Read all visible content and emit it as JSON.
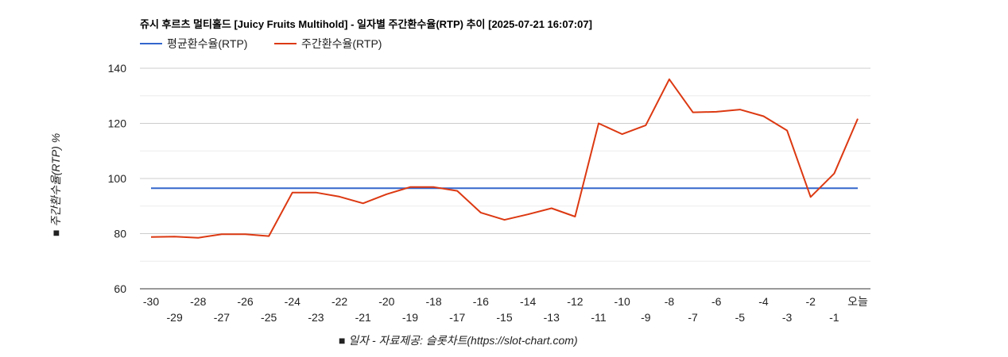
{
  "chart_data": {
    "type": "line",
    "title": "쥬시 후르츠 멀티홀드 [Juicy Fruits Multihold] - 일자별 주간환수율(RTP) 추이 [2025-07-21 16:07:07]",
    "xlabel": "■ 일자 - 자료제공: 슬롯차트(https://slot-chart.com)",
    "ylabel": "■ 주간환수율(RTP) %",
    "categories": [
      "-30",
      "-29",
      "-28",
      "-27",
      "-26",
      "-25",
      "-24",
      "-23",
      "-22",
      "-21",
      "-20",
      "-19",
      "-18",
      "-17",
      "-16",
      "-15",
      "-14",
      "-13",
      "-12",
      "-11",
      "-10",
      "-9",
      "-8",
      "-7",
      "-6",
      "-5",
      "-4",
      "-3",
      "-2",
      "-1",
      "오늘"
    ],
    "ylim": [
      60,
      140
    ],
    "yticks": [
      60,
      80,
      100,
      120,
      140
    ],
    "grid": true,
    "legend_position": "top-left",
    "series": [
      {
        "name": "평균환수율(RTP)",
        "color": "#3366cc",
        "values": [
          96.5,
          96.5,
          96.5,
          96.5,
          96.5,
          96.5,
          96.5,
          96.5,
          96.5,
          96.5,
          96.5,
          96.5,
          96.5,
          96.5,
          96.5,
          96.5,
          96.5,
          96.5,
          96.5,
          96.5,
          96.5,
          96.5,
          96.5,
          96.5,
          96.5,
          96.5,
          96.5,
          96.5,
          96.5,
          96.5,
          96.5
        ]
      },
      {
        "name": "주간환수율(RTP)",
        "color": "#dc3912",
        "values": [
          78.8,
          78.9,
          78.5,
          79.8,
          79.8,
          79.1,
          94.9,
          94.9,
          93.4,
          91.0,
          94.3,
          96.9,
          96.9,
          95.5,
          87.6,
          85.0,
          87.0,
          89.2,
          86.2,
          120.0,
          116.1,
          119.3,
          136.0,
          124.0,
          124.2,
          125.0,
          122.6,
          117.4,
          93.3,
          101.8,
          121.7
        ]
      }
    ]
  }
}
